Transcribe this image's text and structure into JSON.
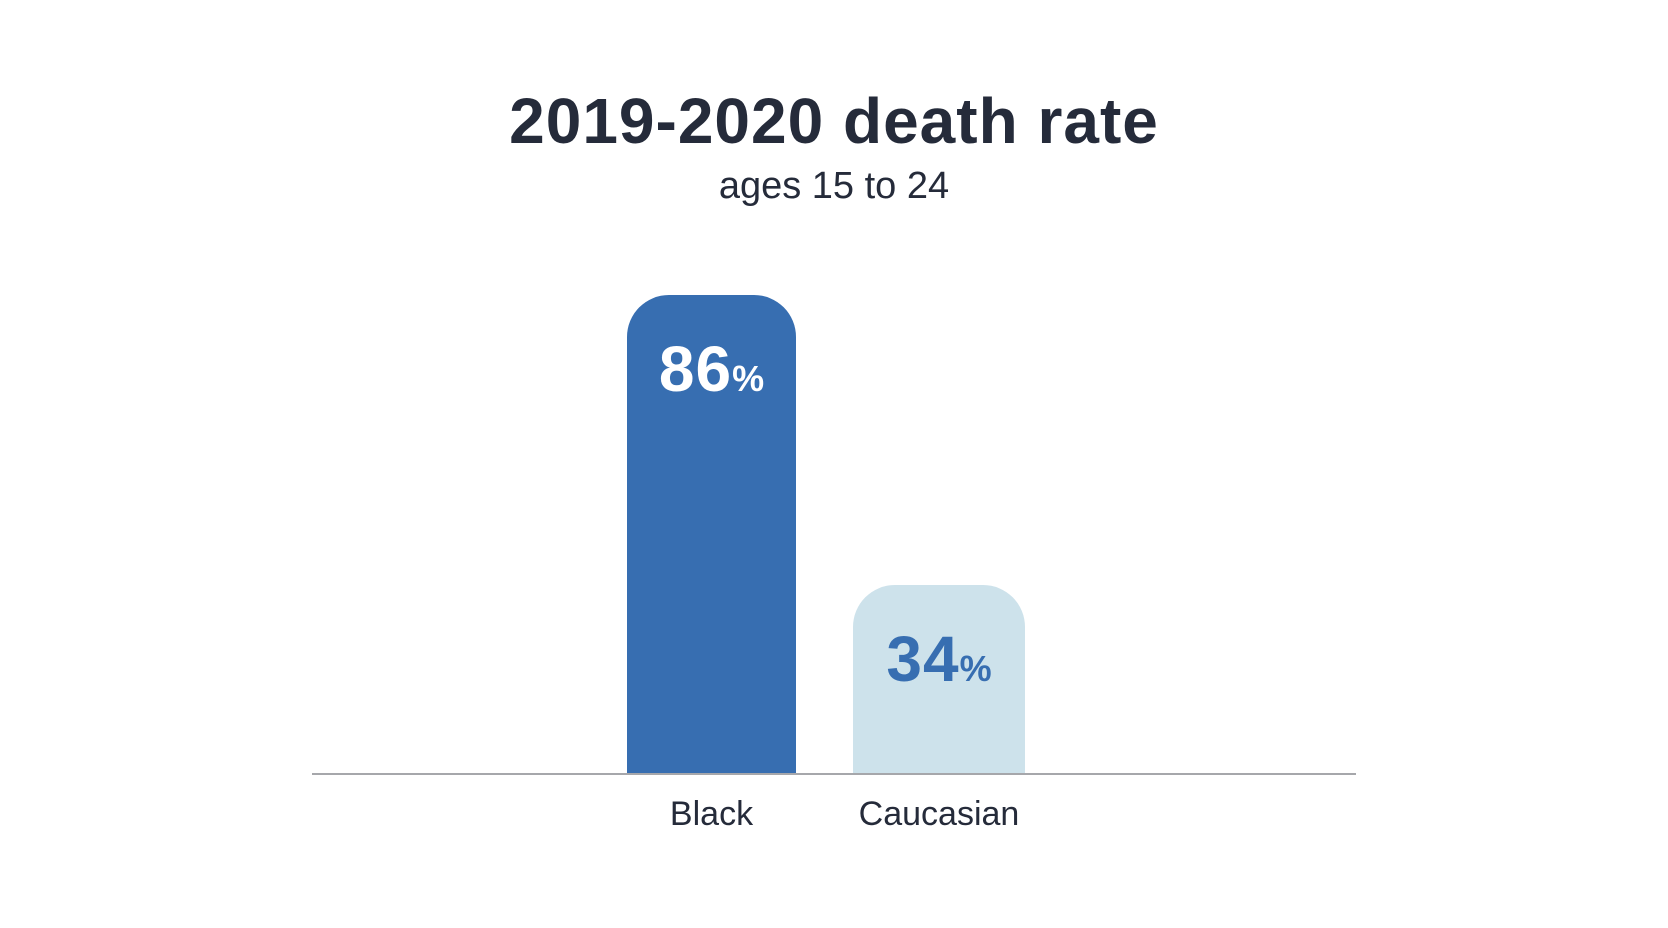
{
  "chart_data": {
    "type": "bar",
    "title": "2019-2020 death rate",
    "subtitle": "ages 15 to 24",
    "categories": [
      "Black",
      "Caucasian"
    ],
    "values": [
      86,
      34
    ],
    "unit": "%",
    "ylim": [
      0,
      100
    ],
    "grid": false,
    "legend": "none",
    "value_labels_position": "inside-top",
    "bar_colors": [
      "#376eb1",
      "#cde2eb"
    ],
    "value_label_colors": [
      "#ffffff",
      "#376eb1"
    ],
    "title_color": "#252b3a",
    "category_label_color": "#252b3a",
    "baseline_color": "#a6a7ab",
    "background_color": "#ffffff"
  }
}
